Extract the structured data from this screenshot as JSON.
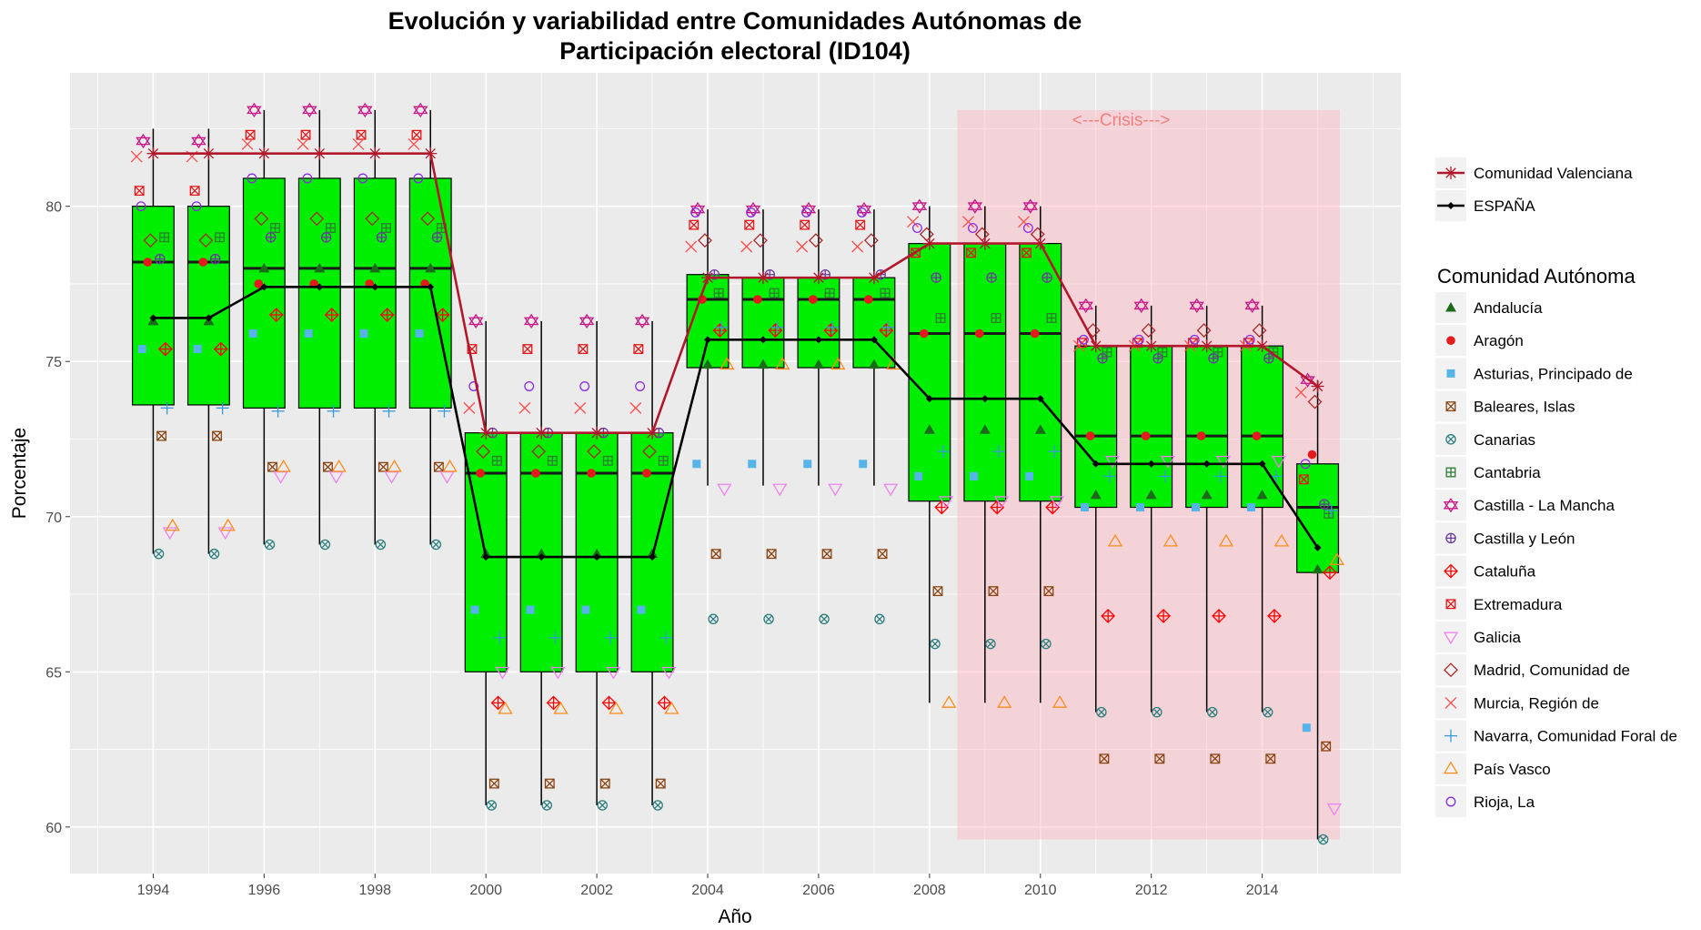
{
  "chart_data": {
    "type": "box",
    "title": "Evolución y variabilidad entre Comunidades Autónomas de",
    "subtitle": "Participación electoral (ID104)",
    "xlabel": "Año",
    "ylabel": "Porcentaje",
    "xlim": [
      1992.5,
      2016.5
    ],
    "ylim": [
      58.5,
      84.3
    ],
    "x_ticks": [
      1994,
      1996,
      1998,
      2000,
      2002,
      2004,
      2006,
      2008,
      2010,
      2012,
      2014
    ],
    "y_ticks": [
      60,
      65,
      70,
      75,
      80
    ],
    "grid": true,
    "legend_position": "right",
    "crisis": {
      "label": "<---Crisis--->",
      "x_start": 2008.5,
      "x_end": 2015.4,
      "y_low": 59.6,
      "y_high": 83.1
    },
    "boxes": [
      {
        "year": 1994,
        "min": 68.8,
        "q1": 73.6,
        "median": 78.2,
        "q3": 80.0,
        "max": 82.5
      },
      {
        "year": 1995,
        "min": 68.8,
        "q1": 73.6,
        "median": 78.2,
        "q3": 80.0,
        "max": 82.5
      },
      {
        "year": 1996,
        "min": 69.1,
        "q1": 73.5,
        "median": 78.0,
        "q3": 80.9,
        "max": 83.1
      },
      {
        "year": 1997,
        "min": 69.1,
        "q1": 73.5,
        "median": 78.0,
        "q3": 80.9,
        "max": 83.1
      },
      {
        "year": 1998,
        "min": 69.1,
        "q1": 73.5,
        "median": 78.0,
        "q3": 80.9,
        "max": 83.1
      },
      {
        "year": 1999,
        "min": 69.1,
        "q1": 73.5,
        "median": 78.0,
        "q3": 80.9,
        "max": 83.1
      },
      {
        "year": 2000,
        "min": 60.7,
        "q1": 65.0,
        "median": 71.4,
        "q3": 72.7,
        "max": 76.3
      },
      {
        "year": 2001,
        "min": 60.7,
        "q1": 65.0,
        "median": 71.4,
        "q3": 72.7,
        "max": 76.3
      },
      {
        "year": 2002,
        "min": 60.7,
        "q1": 65.0,
        "median": 71.4,
        "q3": 72.7,
        "max": 76.3
      },
      {
        "year": 2003,
        "min": 60.7,
        "q1": 65.0,
        "median": 71.4,
        "q3": 72.7,
        "max": 76.3
      },
      {
        "year": 2004,
        "min": 71.0,
        "q1": 74.8,
        "median": 77.0,
        "q3": 77.8,
        "max": 79.9
      },
      {
        "year": 2005,
        "min": 71.0,
        "q1": 74.8,
        "median": 77.0,
        "q3": 77.7,
        "max": 79.9
      },
      {
        "year": 2006,
        "min": 71.0,
        "q1": 74.8,
        "median": 77.0,
        "q3": 77.7,
        "max": 79.9
      },
      {
        "year": 2007,
        "min": 71.0,
        "q1": 74.8,
        "median": 77.0,
        "q3": 77.7,
        "max": 79.9
      },
      {
        "year": 2008,
        "min": 64.0,
        "q1": 70.5,
        "median": 75.9,
        "q3": 78.8,
        "max": 80.0
      },
      {
        "year": 2009,
        "min": 64.0,
        "q1": 70.5,
        "median": 75.9,
        "q3": 78.8,
        "max": 80.0
      },
      {
        "year": 2010,
        "min": 64.0,
        "q1": 70.5,
        "median": 75.9,
        "q3": 78.8,
        "max": 80.0
      },
      {
        "year": 2011,
        "min": 63.7,
        "q1": 70.3,
        "median": 72.6,
        "q3": 75.5,
        "max": 76.8
      },
      {
        "year": 2012,
        "min": 63.7,
        "q1": 70.3,
        "median": 72.6,
        "q3": 75.5,
        "max": 76.8
      },
      {
        "year": 2013,
        "min": 63.7,
        "q1": 70.3,
        "median": 72.6,
        "q3": 75.5,
        "max": 76.8
      },
      {
        "year": 2014,
        "min": 63.7,
        "q1": 70.3,
        "median": 72.6,
        "q3": 75.5,
        "max": 76.8
      },
      {
        "year": 2015,
        "min": 59.6,
        "q1": 68.2,
        "median": 70.3,
        "q3": 71.7,
        "max": 74.4
      }
    ],
    "series": [
      {
        "name": "Comunidad Valenciana",
        "line": true,
        "color": "#b2182b",
        "shape": "asterisk",
        "values": [
          81.7,
          81.7,
          81.7,
          81.7,
          81.7,
          81.7,
          72.7,
          72.7,
          72.7,
          72.7,
          77.7,
          77.7,
          77.7,
          77.7,
          78.8,
          78.8,
          78.8,
          75.5,
          75.5,
          75.5,
          75.5,
          74.2
        ]
      },
      {
        "name": "ESPAÑA",
        "line": true,
        "color": "#000000",
        "shape": "diamond-filled",
        "values": [
          76.4,
          76.4,
          77.4,
          77.4,
          77.4,
          77.4,
          68.7,
          68.7,
          68.7,
          68.7,
          75.7,
          75.7,
          75.7,
          75.7,
          73.8,
          73.8,
          73.8,
          71.7,
          71.7,
          71.7,
          71.7,
          69.0
        ]
      }
    ],
    "legend_title": "Comunidad Autónoma",
    "communities": [
      {
        "name": "Andalucía",
        "color": "#1b6b1b",
        "shape": "triangle-filled",
        "offset": 0,
        "values": [
          76.3,
          76.3,
          78.0,
          78.0,
          78.0,
          78.0,
          68.8,
          68.8,
          68.8,
          68.8,
          74.9,
          74.9,
          74.9,
          74.9,
          72.8,
          72.8,
          72.8,
          70.7,
          70.7,
          70.7,
          70.7,
          68.3
        ]
      },
      {
        "name": "Aragón",
        "color": "#e41a1c",
        "shape": "circle-filled",
        "offset": -0.1,
        "values": [
          78.2,
          78.2,
          77.5,
          77.5,
          77.5,
          77.5,
          71.4,
          71.4,
          71.4,
          71.4,
          77.0,
          77.0,
          77.0,
          77.0,
          75.9,
          75.9,
          75.9,
          72.6,
          72.6,
          72.6,
          72.6,
          72.0
        ]
      },
      {
        "name": "Asturias, Principado de",
        "color": "#56b4e9",
        "shape": "square-filled",
        "offset": -0.2,
        "values": [
          75.4,
          75.4,
          75.9,
          75.9,
          75.9,
          75.9,
          67.0,
          67.0,
          67.0,
          67.0,
          71.7,
          71.7,
          71.7,
          71.7,
          71.3,
          71.3,
          71.3,
          70.3,
          70.3,
          70.3,
          70.3,
          63.2
        ]
      },
      {
        "name": "Baleares, Islas",
        "color": "#8b4513",
        "shape": "square-cross",
        "offset": 0.15,
        "values": [
          72.6,
          72.6,
          71.6,
          71.6,
          71.6,
          71.6,
          61.4,
          61.4,
          61.4,
          61.4,
          68.8,
          68.8,
          68.8,
          68.8,
          67.6,
          67.6,
          67.6,
          62.2,
          62.2,
          62.2,
          62.2,
          62.6
        ]
      },
      {
        "name": "Canarias",
        "color": "#2f7f7f",
        "shape": "circle-x",
        "offset": 0.1,
        "values": [
          68.8,
          68.8,
          69.1,
          69.1,
          69.1,
          69.1,
          60.7,
          60.7,
          60.7,
          60.7,
          66.7,
          66.7,
          66.7,
          66.7,
          65.9,
          65.9,
          65.9,
          63.7,
          63.7,
          63.7,
          63.7,
          59.6
        ]
      },
      {
        "name": "Cantabria",
        "color": "#2e7d32",
        "shape": "square-plus",
        "offset": 0.2,
        "values": [
          79.0,
          79.0,
          79.3,
          79.3,
          79.3,
          79.3,
          71.8,
          71.8,
          71.8,
          71.8,
          77.2,
          77.2,
          77.2,
          77.2,
          76.4,
          76.4,
          76.4,
          75.3,
          75.3,
          75.3,
          75.3,
          70.1
        ]
      },
      {
        "name": "Castilla - La Mancha",
        "color": "#c71585",
        "shape": "star-triangles",
        "offset": -0.18,
        "values": [
          82.1,
          82.1,
          83.1,
          83.1,
          83.1,
          83.1,
          76.3,
          76.3,
          76.3,
          76.3,
          79.9,
          79.9,
          79.9,
          79.9,
          80.0,
          80.0,
          80.0,
          76.8,
          76.8,
          76.8,
          76.8,
          74.4
        ]
      },
      {
        "name": "Castilla y León",
        "color": "#6a3d9a",
        "shape": "circle-plus",
        "offset": 0.12,
        "values": [
          78.3,
          78.3,
          79.0,
          79.0,
          79.0,
          79.0,
          72.7,
          72.7,
          72.7,
          72.7,
          77.8,
          77.8,
          77.8,
          77.8,
          77.7,
          77.7,
          77.7,
          75.1,
          75.1,
          75.1,
          75.1,
          70.4
        ]
      },
      {
        "name": "Cataluña",
        "color": "#ff0000",
        "shape": "diamond-plus",
        "offset": 0.22,
        "values": [
          75.4,
          75.4,
          76.5,
          76.5,
          76.5,
          76.5,
          64.0,
          64.0,
          64.0,
          64.0,
          76.0,
          76.0,
          76.0,
          76.0,
          70.3,
          70.3,
          70.3,
          66.8,
          66.8,
          66.8,
          66.8,
          68.2
        ]
      },
      {
        "name": "Extremadura",
        "color": "#e31a1c",
        "shape": "square-x",
        "offset": -0.25,
        "values": [
          80.5,
          80.5,
          82.3,
          82.3,
          82.3,
          82.3,
          75.4,
          75.4,
          75.4,
          75.4,
          79.4,
          79.4,
          79.4,
          79.4,
          78.5,
          78.5,
          78.5,
          75.6,
          75.6,
          75.6,
          75.6,
          71.2
        ]
      },
      {
        "name": "Galicia",
        "color": "#ee82ee",
        "shape": "triangle-down",
        "offset": 0.3,
        "values": [
          69.5,
          69.5,
          71.3,
          71.3,
          71.3,
          71.3,
          65.0,
          65.0,
          65.0,
          65.0,
          70.9,
          70.9,
          70.9,
          70.9,
          70.5,
          70.5,
          70.5,
          71.8,
          71.8,
          71.8,
          71.8,
          60.6
        ]
      },
      {
        "name": "Madrid, Comunidad de",
        "color": "#a52a2a",
        "shape": "diamond-open",
        "offset": -0.05,
        "values": [
          78.9,
          78.9,
          79.6,
          79.6,
          79.6,
          79.6,
          72.1,
          72.1,
          72.1,
          72.1,
          78.9,
          78.9,
          78.9,
          78.9,
          79.1,
          79.1,
          79.1,
          76.0,
          76.0,
          76.0,
          76.0,
          73.7
        ]
      },
      {
        "name": "Murcia, Región de",
        "color": "#ff4d4d",
        "shape": "x",
        "offset": -0.3,
        "values": [
          81.6,
          81.6,
          82.0,
          82.0,
          82.0,
          82.0,
          73.5,
          73.5,
          73.5,
          73.5,
          78.7,
          78.7,
          78.7,
          78.7,
          79.5,
          79.5,
          79.5,
          75.5,
          75.5,
          75.5,
          75.5,
          74.0
        ]
      },
      {
        "name": "Navarra, Comunidad Foral de",
        "color": "#3a9ad9",
        "shape": "plus",
        "offset": 0.25,
        "values": [
          73.5,
          73.5,
          73.4,
          73.4,
          73.4,
          73.4,
          66.1,
          66.1,
          66.1,
          66.1,
          76.1,
          76.1,
          76.1,
          76.1,
          72.1,
          72.1,
          72.1,
          71.3,
          71.3,
          71.3,
          71.3,
          70.2
        ]
      },
      {
        "name": "País Vasco",
        "color": "#ff8c1a",
        "shape": "triangle-open",
        "offset": 0.35,
        "values": [
          69.7,
          69.7,
          71.6,
          71.6,
          71.6,
          71.6,
          63.8,
          63.8,
          63.8,
          63.8,
          74.9,
          74.9,
          74.9,
          74.9,
          64.0,
          64.0,
          64.0,
          69.2,
          69.2,
          69.2,
          69.2,
          68.6
        ]
      },
      {
        "name": "Rioja, La",
        "color": "#8a2be2",
        "shape": "circle-open",
        "offset": -0.22,
        "values": [
          80.0,
          80.0,
          80.9,
          80.9,
          80.9,
          80.9,
          74.2,
          74.2,
          74.2,
          74.2,
          79.8,
          79.8,
          79.8,
          79.8,
          79.3,
          79.3,
          79.3,
          75.7,
          75.7,
          75.7,
          75.7,
          71.7
        ]
      }
    ]
  }
}
